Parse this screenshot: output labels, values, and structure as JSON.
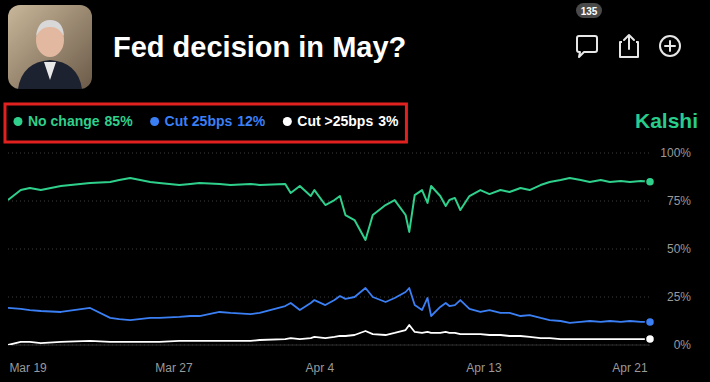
{
  "chart_data": {
    "type": "line",
    "title": "Fed decision in May?",
    "comment_count": 135,
    "brand": "Kalshi",
    "legend": "top-left",
    "grid": true,
    "x": [
      -1.1,
      -0.4,
      0.1,
      0.7,
      1.8,
      3.4,
      4.5,
      5.0,
      5.6,
      6.7,
      7.2,
      8.3,
      8.9,
      9.4,
      10.5,
      11.1,
      12.2,
      12.7,
      14.1,
      14.4,
      14.9,
      15.5,
      15.7,
      16.3,
      16.8,
      17.1,
      17.4,
      17.9,
      18.5,
      18.9,
      19.6,
      20.1,
      20.7,
      20.9,
      21.2,
      21.6,
      21.9,
      22.1,
      22.6,
      22.9,
      23.1,
      23.4,
      23.7,
      24.2,
      24.8,
      25.3,
      25.9,
      26.4,
      27.0,
      27.5,
      28.1,
      28.6,
      29.2,
      29.7,
      30.3,
      30.8,
      31.4,
      31.9,
      32.5,
      33.0,
      33.6,
      34.1
    ],
    "xlim": [
      -1.1,
      34.1
    ],
    "xticks": [
      {
        "value": 0,
        "label": "Mar 19"
      },
      {
        "value": 8,
        "label": "Mar 27"
      },
      {
        "value": 16,
        "label": "Apr 4"
      },
      {
        "value": 25,
        "label": "Apr 13"
      },
      {
        "value": 33,
        "label": "Apr 21"
      }
    ],
    "ylim": [
      0,
      100
    ],
    "yticks": [
      {
        "value": 0,
        "label": "0%"
      },
      {
        "value": 25,
        "label": "25%"
      },
      {
        "value": 50,
        "label": "50%"
      },
      {
        "value": 75,
        "label": "75%"
      },
      {
        "value": 100,
        "label": "100%"
      }
    ],
    "series": [
      {
        "name": "No change",
        "value_label": "85%",
        "color": "#2fd08c",
        "values": [
          75.5,
          80.7,
          81.8,
          80.7,
          82.8,
          84.4,
          84.9,
          85.9,
          87.0,
          84.9,
          84.4,
          83.3,
          83.9,
          84.4,
          83.9,
          83.3,
          83.9,
          83.3,
          83.9,
          79.2,
          82.8,
          77.6,
          80.7,
          72.9,
          75.5,
          77.6,
          67.7,
          65.1,
          54.7,
          67.7,
          72.9,
          75.5,
          67.7,
          58.9,
          78.1,
          80.7,
          74.0,
          82.8,
          77.6,
          72.4,
          75.5,
          76.6,
          70.3,
          77.6,
          80.7,
          78.6,
          80.7,
          79.7,
          81.8,
          80.7,
          83.3,
          84.9,
          85.9,
          87.0,
          85.9,
          84.9,
          85.9,
          84.9,
          85.4,
          84.9,
          85.4,
          85.0
        ]
      },
      {
        "name": "Cut 25bps",
        "value_label": "12%",
        "color": "#3b7ff5",
        "values": [
          19.3,
          18.8,
          18.2,
          17.7,
          17.2,
          19.3,
          14.1,
          13.5,
          13.0,
          14.1,
          14.1,
          14.6,
          15.1,
          15.1,
          17.2,
          16.7,
          16.1,
          16.7,
          20.3,
          21.9,
          18.2,
          21.9,
          23.4,
          20.8,
          23.4,
          25.5,
          24.0,
          25.0,
          29.7,
          25.0,
          22.4,
          24.5,
          27.6,
          29.7,
          20.8,
          18.2,
          24.5,
          15.1,
          19.8,
          21.9,
          20.3,
          20.8,
          23.4,
          18.8,
          17.2,
          18.2,
          16.7,
          16.7,
          15.1,
          15.6,
          14.1,
          13.0,
          12.5,
          11.5,
          12.0,
          12.5,
          12.0,
          12.5,
          12.0,
          12.5,
          12.0,
          12.0
        ]
      },
      {
        "name": "Cut >25bps",
        "value_label": "3%",
        "color": "#ffffff",
        "values": [
          0,
          1.6,
          1.6,
          1.0,
          1.6,
          2.1,
          1.6,
          1.6,
          1.6,
          1.6,
          1.6,
          2.1,
          2.1,
          2.1,
          2.1,
          2.1,
          2.1,
          2.6,
          3.1,
          3.6,
          3.1,
          3.6,
          4.2,
          3.6,
          4.2,
          4.7,
          4.7,
          5.2,
          7.3,
          5.7,
          5.2,
          6.3,
          7.8,
          10.4,
          6.8,
          6.3,
          6.8,
          6.3,
          6.3,
          6.8,
          6.3,
          6.3,
          5.7,
          5.7,
          5.7,
          5.2,
          5.2,
          4.7,
          4.7,
          4.2,
          3.6,
          3.6,
          3.1,
          3.1,
          3.1,
          3.1,
          3.1,
          3.1,
          3.1,
          3.1,
          3.1,
          3.1
        ]
      }
    ]
  }
}
